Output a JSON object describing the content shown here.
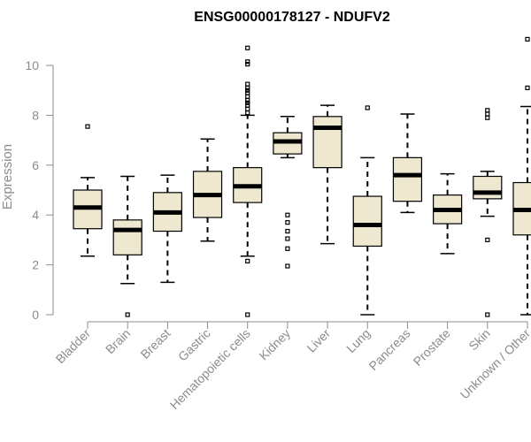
{
  "chart_data": {
    "type": "box",
    "title": "ENSG00000178127 - NDUFV2",
    "xlabel": "",
    "ylabel": "Expression",
    "ylim": [
      0,
      11
    ],
    "yticks": [
      0,
      2,
      4,
      6,
      8,
      10
    ],
    "grid": false,
    "legend": "none",
    "colors": {
      "box_fill": "#efe8d1",
      "stroke": "#000000",
      "axis": "#8c8c8c",
      "title": "#000000"
    },
    "categories": [
      "Bladder",
      "Brain",
      "Breast",
      "Gastric",
      "Hematopoietic cells",
      "Kidney",
      "Liver",
      "Lung",
      "Pancreas",
      "Prostate",
      "Skin",
      "Unknown / Other"
    ],
    "boxes": [
      {
        "category": "Bladder",
        "whisker_low": 2.35,
        "q1": 3.45,
        "median": 4.3,
        "q3": 5.0,
        "whisker_high": 5.5,
        "outliers": [
          7.55
        ]
      },
      {
        "category": "Brain",
        "whisker_low": 1.25,
        "q1": 2.4,
        "median": 3.4,
        "q3": 3.8,
        "whisker_high": 5.55,
        "outliers": [
          0.0
        ]
      },
      {
        "category": "Breast",
        "whisker_low": 1.3,
        "q1": 3.35,
        "median": 4.1,
        "q3": 4.9,
        "whisker_high": 5.6,
        "outliers": []
      },
      {
        "category": "Gastric",
        "whisker_low": 2.95,
        "q1": 3.9,
        "median": 4.8,
        "q3": 5.75,
        "whisker_high": 7.05,
        "outliers": []
      },
      {
        "category": "Hematopoietic cells",
        "whisker_low": 2.35,
        "q1": 4.5,
        "median": 5.15,
        "q3": 5.9,
        "whisker_high": 8.0,
        "outliers": [
          0.0,
          2.15,
          8.1,
          8.25,
          8.4,
          8.5,
          8.6,
          8.75,
          8.9,
          9.0,
          9.1,
          9.25,
          10.05,
          10.15,
          10.7
        ]
      },
      {
        "category": "Kidney",
        "whisker_low": 6.3,
        "q1": 6.45,
        "median": 6.95,
        "q3": 7.3,
        "whisker_high": 7.95,
        "outliers": [
          1.95,
          2.65,
          3.05,
          3.35,
          3.7,
          4.0
        ]
      },
      {
        "category": "Liver",
        "whisker_low": 2.85,
        "q1": 5.9,
        "median": 7.5,
        "q3": 7.95,
        "whisker_high": 8.4,
        "outliers": []
      },
      {
        "category": "Lung",
        "whisker_low": 0.0,
        "q1": 2.75,
        "median": 3.6,
        "q3": 4.75,
        "whisker_high": 6.3,
        "outliers": [
          8.3
        ]
      },
      {
        "category": "Pancreas",
        "whisker_low": 4.1,
        "q1": 4.55,
        "median": 5.6,
        "q3": 6.3,
        "whisker_high": 8.05,
        "outliers": []
      },
      {
        "category": "Prostate",
        "whisker_low": 2.45,
        "q1": 3.65,
        "median": 4.2,
        "q3": 4.8,
        "whisker_high": 5.65,
        "outliers": []
      },
      {
        "category": "Skin",
        "whisker_low": 3.95,
        "q1": 4.65,
        "median": 4.9,
        "q3": 5.55,
        "whisker_high": 5.75,
        "outliers": [
          0.0,
          3.0,
          7.9,
          8.05,
          8.2
        ]
      },
      {
        "category": "Unknown / Other",
        "whisker_low": 0.0,
        "q1": 3.2,
        "median": 4.2,
        "q3": 5.3,
        "whisker_high": 8.35,
        "outliers": [
          9.1,
          11.05
        ]
      }
    ]
  }
}
